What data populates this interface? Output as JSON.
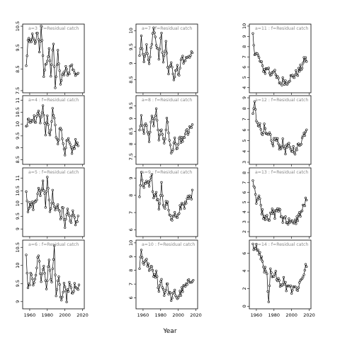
{
  "chart_data": {
    "type": "line",
    "xlabel": "Year",
    "x_ticks": [
      1960,
      1980,
      2000,
      2020
    ],
    "xlim": [
      1952,
      2022
    ],
    "panels": [
      {
        "title": "a=3  :  f=Residual catch",
        "col": 0,
        "row": 0,
        "ylim": [
          7.4,
          10.6
        ],
        "yticks": [
          7.5,
          8.5,
          9.5,
          10.5
        ],
        "anchors": [
          [
            1956,
            8.6
          ],
          [
            1958,
            9.8
          ],
          [
            1960,
            9.7
          ],
          [
            1963,
            10.0
          ],
          [
            1966,
            9.6
          ],
          [
            1969,
            10.3
          ],
          [
            1971,
            9.4
          ],
          [
            1973,
            10.4
          ],
          [
            1976,
            8.3
          ],
          [
            1979,
            8.8
          ],
          [
            1982,
            9.3
          ],
          [
            1984,
            8.2
          ],
          [
            1987,
            9.8
          ],
          [
            1989,
            7.7
          ],
          [
            1992,
            9.2
          ],
          [
            1995,
            7.9
          ],
          [
            1998,
            8.2
          ],
          [
            2001,
            8.5
          ],
          [
            2004,
            8.3
          ],
          [
            2007,
            8.7
          ],
          [
            2010,
            8.5
          ],
          [
            2013,
            8.1
          ],
          [
            2015,
            8.5
          ]
        ]
      },
      {
        "title": "a=7  :  f=Residual catch",
        "col": 1,
        "row": 0,
        "ylim": [
          8.1,
          10.2
        ],
        "yticks": [
          8.5,
          9.0,
          9.5,
          10.0
        ],
        "anchors": [
          [
            1956,
            9.3
          ],
          [
            1958,
            9.8
          ],
          [
            1961,
            9.1
          ],
          [
            1964,
            9.5
          ],
          [
            1967,
            8.9
          ],
          [
            1970,
            9.7
          ],
          [
            1972,
            10.1
          ],
          [
            1975,
            9.6
          ],
          [
            1978,
            9.2
          ],
          [
            1981,
            9.9
          ],
          [
            1983,
            9.0
          ],
          [
            1986,
            9.6
          ],
          [
            1989,
            8.6
          ],
          [
            1992,
            9.1
          ],
          [
            1995,
            8.4
          ],
          [
            1998,
            8.9
          ],
          [
            2001,
            8.7
          ],
          [
            2004,
            9.2
          ],
          [
            2007,
            9.0
          ],
          [
            2010,
            9.3
          ],
          [
            2013,
            9.1
          ],
          [
            2016,
            9.3
          ]
        ]
      },
      {
        "title": "a=11  :  f=Residual catch",
        "col": 2,
        "row": 0,
        "ylim": [
          3.5,
          10.2
        ],
        "yticks": [
          4,
          5,
          6,
          7,
          8,
          9,
          10
        ],
        "anchors": [
          [
            1956,
            9.0
          ],
          [
            1958,
            7.6
          ],
          [
            1961,
            7.2
          ],
          [
            1964,
            6.6
          ],
          [
            1967,
            6.0
          ],
          [
            1970,
            5.6
          ],
          [
            1973,
            6.0
          ],
          [
            1976,
            5.3
          ],
          [
            1979,
            5.8
          ],
          [
            1982,
            5.1
          ],
          [
            1985,
            4.7
          ],
          [
            1988,
            4.4
          ],
          [
            1991,
            4.8
          ],
          [
            1994,
            4.5
          ],
          [
            1997,
            4.9
          ],
          [
            2000,
            5.0
          ],
          [
            2003,
            5.2
          ],
          [
            2006,
            5.4
          ],
          [
            2009,
            5.7
          ],
          [
            2012,
            6.1
          ],
          [
            2015,
            6.8
          ],
          [
            2017,
            6.7
          ]
        ]
      },
      {
        "title": "a=4  :  f=Residual catch",
        "col": 0,
        "row": 1,
        "ylim": [
          8.3,
          11.2
        ],
        "yticks": [
          8.5,
          9.0,
          9.5,
          10.0,
          10.5,
          11.0
        ],
        "anchors": [
          [
            1956,
            9.8
          ],
          [
            1958,
            10.2
          ],
          [
            1961,
            10.0
          ],
          [
            1964,
            10.3
          ],
          [
            1967,
            10.2
          ],
          [
            1970,
            10.6
          ],
          [
            1972,
            10.0
          ],
          [
            1975,
            10.8
          ],
          [
            1978,
            9.6
          ],
          [
            1980,
            10.2
          ],
          [
            1983,
            9.4
          ],
          [
            1986,
            10.7
          ],
          [
            1989,
            9.8
          ],
          [
            1992,
            9.2
          ],
          [
            1995,
            9.9
          ],
          [
            1998,
            9.0
          ],
          [
            2000,
            8.7
          ],
          [
            2003,
            9.4
          ],
          [
            2006,
            9.1
          ],
          [
            2009,
            8.8
          ],
          [
            2012,
            9.3
          ],
          [
            2015,
            9.0
          ]
        ]
      },
      {
        "title": "a=8  :  f=Residual catch",
        "col": 1,
        "row": 1,
        "ylim": [
          7.2,
          9.9
        ],
        "yticks": [
          7.5,
          8.0,
          8.5,
          9.0,
          9.5
        ],
        "anchors": [
          [
            1956,
            8.4
          ],
          [
            1958,
            9.0
          ],
          [
            1961,
            8.5
          ],
          [
            1964,
            8.8
          ],
          [
            1967,
            8.0
          ],
          [
            1970,
            9.2
          ],
          [
            1972,
            8.6
          ],
          [
            1975,
            9.5
          ],
          [
            1978,
            8.2
          ],
          [
            1981,
            8.7
          ],
          [
            1984,
            7.9
          ],
          [
            1987,
            9.1
          ],
          [
            1990,
            8.1
          ],
          [
            1993,
            7.6
          ],
          [
            1996,
            8.2
          ],
          [
            1999,
            7.8
          ],
          [
            2002,
            8.3
          ],
          [
            2005,
            8.0
          ],
          [
            2008,
            8.5
          ],
          [
            2011,
            8.4
          ],
          [
            2014,
            8.6
          ],
          [
            2016,
            8.7
          ]
        ]
      },
      {
        "title": "a=12  :  f=Residual catch",
        "col": 2,
        "row": 1,
        "ylim": [
          2.8,
          9.2
        ],
        "yticks": [
          3,
          4,
          5,
          6,
          7,
          8,
          9
        ],
        "anchors": [
          [
            1956,
            7.5
          ],
          [
            1958,
            8.5
          ],
          [
            1960,
            7.0
          ],
          [
            1963,
            6.6
          ],
          [
            1966,
            5.8
          ],
          [
            1969,
            6.2
          ],
          [
            1972,
            5.3
          ],
          [
            1975,
            5.5
          ],
          [
            1978,
            4.6
          ],
          [
            1981,
            5.2
          ],
          [
            1984,
            4.9
          ],
          [
            1987,
            4.4
          ],
          [
            1990,
            4.8
          ],
          [
            1993,
            4.1
          ],
          [
            1996,
            4.6
          ],
          [
            1999,
            4.0
          ],
          [
            2002,
            4.3
          ],
          [
            2005,
            4.0
          ],
          [
            2008,
            4.6
          ],
          [
            2011,
            5.0
          ],
          [
            2014,
            5.6
          ],
          [
            2017,
            6.2
          ]
        ]
      },
      {
        "title": "a=5  :  f=Residual catch",
        "col": 0,
        "row": 2,
        "ylim": [
          8.7,
          11.4
        ],
        "yticks": [
          9.0,
          9.5,
          10.0,
          10.5,
          11.0
        ],
        "anchors": [
          [
            1956,
            10.6
          ],
          [
            1958,
            9.8
          ],
          [
            1961,
            10.0
          ],
          [
            1964,
            9.9
          ],
          [
            1967,
            10.1
          ],
          [
            1970,
            10.7
          ],
          [
            1972,
            10.2
          ],
          [
            1975,
            10.9
          ],
          [
            1978,
            10.0
          ],
          [
            1980,
            11.1
          ],
          [
            1983,
            9.7
          ],
          [
            1986,
            10.4
          ],
          [
            1989,
            9.6
          ],
          [
            1992,
            10.1
          ],
          [
            1995,
            9.3
          ],
          [
            1998,
            9.9
          ],
          [
            2000,
            9.1
          ],
          [
            2003,
            9.8
          ],
          [
            2006,
            9.3
          ],
          [
            2009,
            9.6
          ],
          [
            2012,
            9.2
          ],
          [
            2015,
            9.5
          ]
        ]
      },
      {
        "title": "a=9  :  f=Residual catch",
        "col": 1,
        "row": 2,
        "ylim": [
          5.6,
          9.6
        ],
        "yticks": [
          6,
          7,
          8,
          9
        ],
        "anchors": [
          [
            1956,
            8.0
          ],
          [
            1958,
            9.2
          ],
          [
            1961,
            8.3
          ],
          [
            1964,
            8.9
          ],
          [
            1967,
            8.5
          ],
          [
            1970,
            9.0
          ],
          [
            1972,
            7.8
          ],
          [
            1975,
            8.2
          ],
          [
            1978,
            7.3
          ],
          [
            1981,
            8.6
          ],
          [
            1984,
            7.2
          ],
          [
            1987,
            7.6
          ],
          [
            1990,
            7.0
          ],
          [
            1993,
            6.6
          ],
          [
            1996,
            6.9
          ],
          [
            1999,
            6.5
          ],
          [
            2002,
            7.3
          ],
          [
            2005,
            7.6
          ],
          [
            2008,
            7.4
          ],
          [
            2011,
            7.8
          ],
          [
            2014,
            7.9
          ],
          [
            2016,
            8.1
          ]
        ]
      },
      {
        "title": "a=13  :  f=Residual catch",
        "col": 2,
        "row": 2,
        "ylim": [
          1.5,
          8.5
        ],
        "yticks": [
          2,
          3,
          4,
          5,
          6,
          7,
          8
        ],
        "anchors": [
          [
            1956,
            7.5
          ],
          [
            1958,
            6.6
          ],
          [
            1960,
            5.2
          ],
          [
            1963,
            5.6
          ],
          [
            1966,
            4.2
          ],
          [
            1969,
            3.5
          ],
          [
            1972,
            3.8
          ],
          [
            1975,
            3.3
          ],
          [
            1978,
            4.0
          ],
          [
            1981,
            3.7
          ],
          [
            1984,
            4.4
          ],
          [
            1987,
            3.9
          ],
          [
            1990,
            3.2
          ],
          [
            1993,
            3.5
          ],
          [
            1996,
            2.9
          ],
          [
            1999,
            3.3
          ],
          [
            2002,
            2.6
          ],
          [
            2005,
            3.1
          ],
          [
            2008,
            3.6
          ],
          [
            2011,
            4.0
          ],
          [
            2014,
            4.6
          ],
          [
            2017,
            5.4
          ]
        ]
      },
      {
        "title": "a=6  :  f=Residual catch",
        "col": 0,
        "row": 3,
        "ylim": [
          8.8,
          10.7
        ],
        "yticks": [
          9.0,
          9.5,
          10.0,
          10.5
        ],
        "anchors": [
          [
            1956,
            10.2
          ],
          [
            1958,
            9.3
          ],
          [
            1961,
            9.7
          ],
          [
            1964,
            9.5
          ],
          [
            1967,
            9.8
          ],
          [
            1970,
            10.3
          ],
          [
            1973,
            9.6
          ],
          [
            1976,
            10.0
          ],
          [
            1979,
            9.4
          ],
          [
            1982,
            10.1
          ],
          [
            1985,
            9.5
          ],
          [
            1988,
            10.5
          ],
          [
            1990,
            9.2
          ],
          [
            1993,
            9.6
          ],
          [
            1996,
            9.0
          ],
          [
            1999,
            9.4
          ],
          [
            2002,
            9.1
          ],
          [
            2005,
            9.5
          ],
          [
            2008,
            9.2
          ],
          [
            2011,
            9.4
          ],
          [
            2014,
            9.3
          ],
          [
            2016,
            9.5
          ]
        ]
      },
      {
        "title": "a=10  :  f=Residual catch",
        "col": 1,
        "row": 3,
        "ylim": [
          5.2,
          10.2
        ],
        "yticks": [
          6,
          7,
          8,
          9,
          10
        ],
        "anchors": [
          [
            1956,
            8.0
          ],
          [
            1958,
            9.4
          ],
          [
            1961,
            8.2
          ],
          [
            1964,
            8.8
          ],
          [
            1967,
            7.9
          ],
          [
            1970,
            8.5
          ],
          [
            1972,
            7.3
          ],
          [
            1975,
            7.8
          ],
          [
            1978,
            6.6
          ],
          [
            1981,
            7.4
          ],
          [
            1984,
            6.2
          ],
          [
            1987,
            7.0
          ],
          [
            1990,
            6.3
          ],
          [
            1993,
            5.9
          ],
          [
            1996,
            6.4
          ],
          [
            1999,
            6.0
          ],
          [
            2002,
            6.3
          ],
          [
            2005,
            6.6
          ],
          [
            2008,
            6.8
          ],
          [
            2011,
            7.0
          ],
          [
            2014,
            7.3
          ],
          [
            2017,
            7.5
          ]
        ]
      },
      {
        "title": "a=14  :  f=Residual catch",
        "col": 2,
        "row": 3,
        "ylim": [
          -0.3,
          7.5
        ],
        "yticks": [
          0,
          2,
          4,
          6
        ],
        "anchors": [
          [
            1956,
            6.8
          ],
          [
            1958,
            6.4
          ],
          [
            1960,
            6.9
          ],
          [
            1963,
            5.8
          ],
          [
            1966,
            5.5
          ],
          [
            1969,
            4.3
          ],
          [
            1972,
            3.4
          ],
          [
            1974,
            0.1
          ],
          [
            1976,
            3.9
          ],
          [
            1979,
            3.0
          ],
          [
            1982,
            3.6
          ],
          [
            1985,
            3.2
          ],
          [
            1988,
            2.4
          ],
          [
            1991,
            3.0
          ],
          [
            1994,
            2.1
          ],
          [
            1997,
            2.6
          ],
          [
            2000,
            1.9
          ],
          [
            2003,
            2.4
          ],
          [
            2006,
            1.8
          ],
          [
            2009,
            2.6
          ],
          [
            2012,
            3.3
          ],
          [
            2015,
            4.0
          ],
          [
            2017,
            4.8
          ]
        ]
      }
    ]
  }
}
